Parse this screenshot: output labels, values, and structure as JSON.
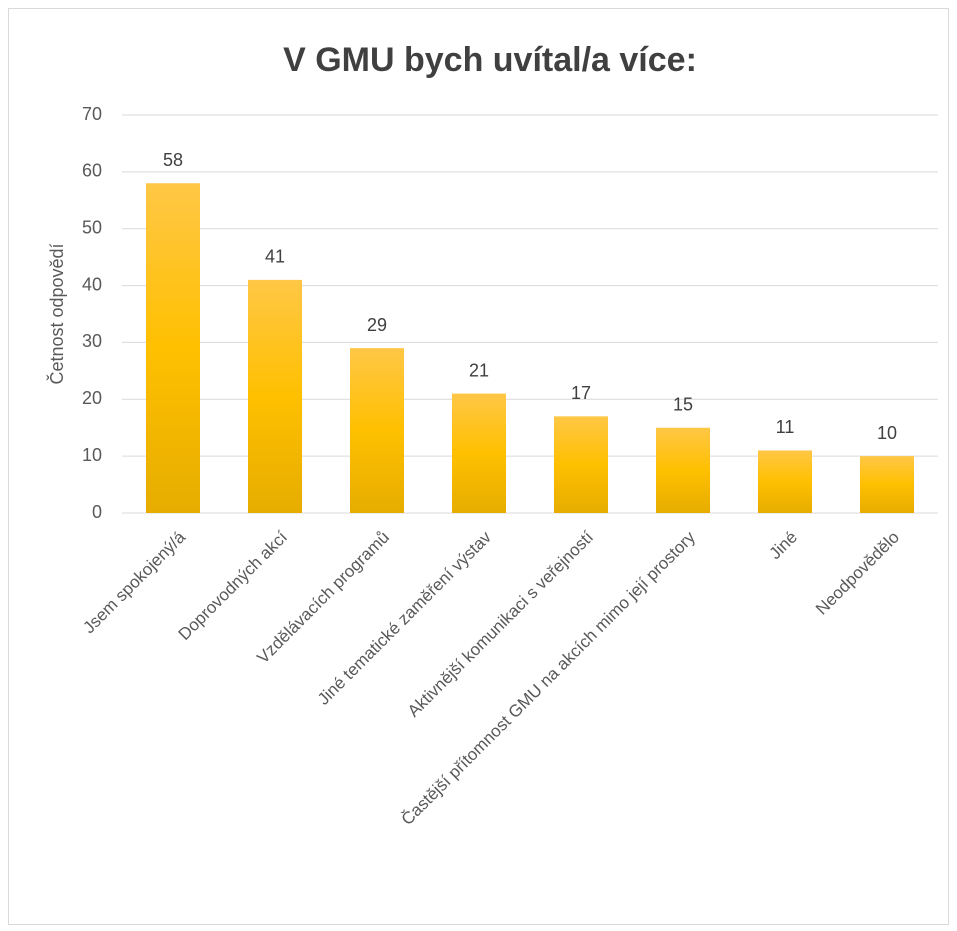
{
  "chart_data": {
    "type": "bar",
    "title": "V GMU bych uvítal/a více:",
    "ylabel": "Četnost odpovědí",
    "categories": [
      "Jsem spokojený/á",
      "Doprovodných akcí",
      "Vzdělávacích programů",
      "Jiné tematické zaměření výstav",
      "Aktivnější komunikaci s veřejností",
      "Častější přítomnost GMU na akcích mimo její prostory",
      "Jiné",
      "Neodpovědělo"
    ],
    "values": [
      58,
      41,
      29,
      21,
      17,
      15,
      11,
      10
    ],
    "color": "#ffc000",
    "ylim": [
      0,
      70
    ],
    "yticks": [
      0,
      10,
      20,
      30,
      40,
      50,
      60,
      70
    ],
    "grid": true
  }
}
